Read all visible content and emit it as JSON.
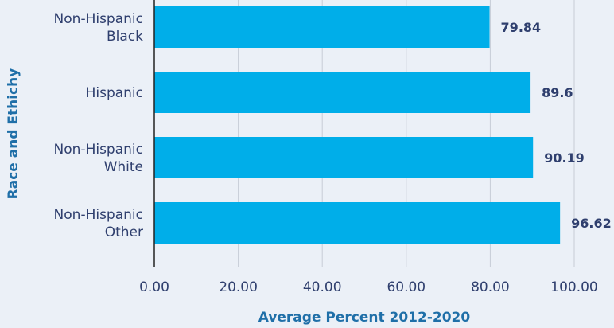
{
  "chart_data": {
    "type": "bar",
    "orientation": "horizontal",
    "categories": [
      [
        "Non-Hispanic",
        "Black"
      ],
      [
        "Hispanic"
      ],
      [
        "Non-Hispanic",
        "White"
      ],
      [
        "Non-Hispanic",
        "Other"
      ]
    ],
    "values": [
      79.84,
      89.6,
      90.19,
      96.62
    ],
    "value_labels": [
      "79.84",
      "89.6",
      "90.19",
      "96.62"
    ],
    "x_ticks": [
      "0.00",
      "20.00",
      "40.00",
      "60.00",
      "80.00",
      "100.00"
    ],
    "xlim": [
      0,
      100
    ],
    "xlabel": "Average Percent 2012-2020",
    "ylabel": "Race and Ethichy",
    "grid": true
  },
  "colors": {
    "bar": "#00aee9",
    "grid": "#c7ccd6",
    "axis": "#222222",
    "label_text": "#2f3f6e",
    "axis_title": "#1f6fa8"
  }
}
